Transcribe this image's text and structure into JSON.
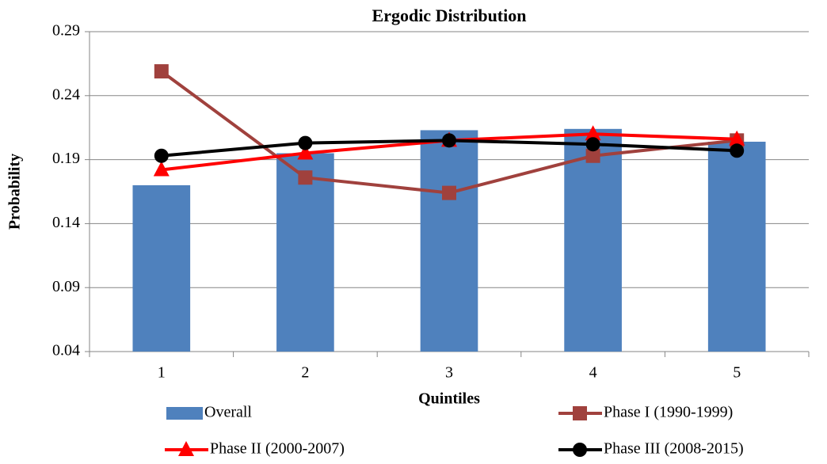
{
  "chart_data": {
    "type": "combo",
    "title": "Ergodic Distribution",
    "x_label": "Quintiles",
    "y_label": "Probability",
    "categories": [
      "1",
      "2",
      "3",
      "4",
      "5"
    ],
    "series": [
      {
        "name": "Overall",
        "type": "bar",
        "color": "#4f81bd",
        "values": [
          0.17,
          0.195,
          0.213,
          0.214,
          0.204
        ]
      },
      {
        "name": "Phase I (1990-1999)",
        "type": "line",
        "marker": "square",
        "color": "#a0413d",
        "values": [
          0.259,
          0.176,
          0.164,
          0.193,
          0.205
        ]
      },
      {
        "name": "Phase II (2000-2007)",
        "type": "line",
        "marker": "triangle",
        "color": "#ff0000",
        "values": [
          0.182,
          0.195,
          0.205,
          0.21,
          0.206
        ]
      },
      {
        "name": "Phase III (2008-2015)",
        "type": "line",
        "marker": "circle",
        "color": "#000000",
        "values": [
          0.193,
          0.203,
          0.205,
          0.202,
          0.197
        ]
      }
    ],
    "ylim": [
      0.04,
      0.29
    ],
    "yticks": [
      0.04,
      0.09,
      0.14,
      0.19,
      0.24,
      0.29
    ],
    "grid": true,
    "legend": "bottom"
  }
}
